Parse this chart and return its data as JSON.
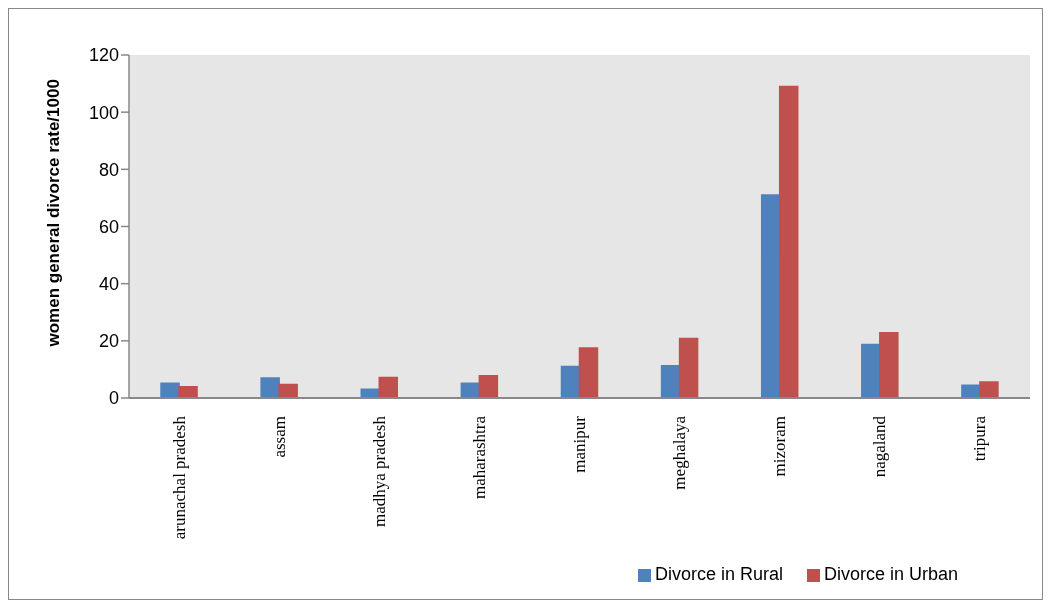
{
  "chart_data": {
    "type": "bar",
    "ylabel": "women general divorce rate/1000",
    "categories": [
      "arunachal pradesh",
      "assam",
      "madhya pradesh",
      "maharashtra",
      "manipur",
      "meghalaya",
      "mizoram",
      "nagaland",
      "tripura"
    ],
    "series": [
      {
        "name": "Divorce in Rural",
        "color": "#4f81bd",
        "values": [
          5.2,
          7,
          3.1,
          5.2,
          11,
          11.3,
          71,
          18.7,
          4.5
        ]
      },
      {
        "name": "Divorce in Urban",
        "color": "#c0504d",
        "values": [
          3.9,
          4.7,
          7.2,
          7.8,
          17.5,
          20.8,
          109,
          22.8,
          5.6
        ]
      }
    ],
    "ylim": [
      0,
      120
    ],
    "yticks": [
      0,
      20,
      40,
      60,
      80,
      100,
      120
    ],
    "grid": false,
    "legend": "bottom"
  }
}
